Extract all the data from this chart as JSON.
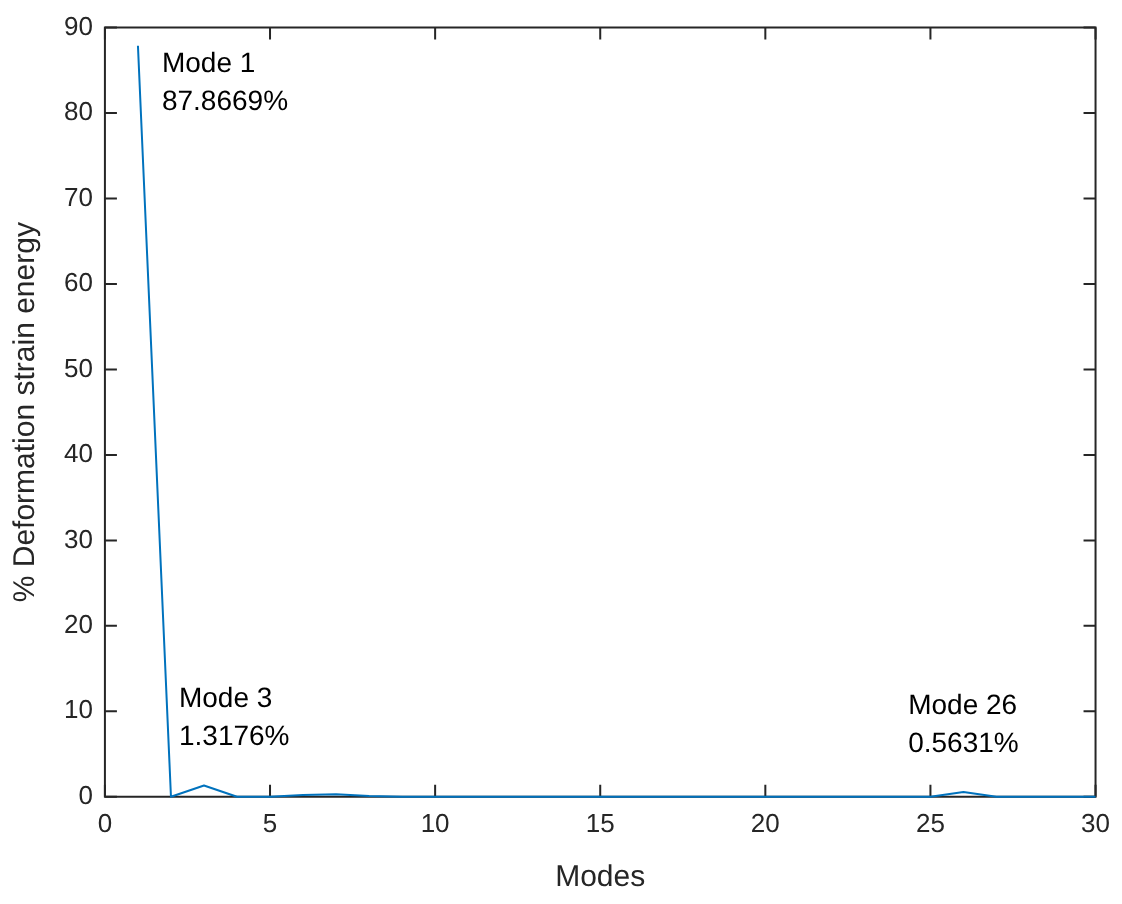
{
  "chart_data": {
    "type": "line",
    "xlabel": "Modes",
    "ylabel": "% Deformation strain energy",
    "x": [
      1,
      2,
      3,
      4,
      5,
      6,
      7,
      8,
      9,
      10,
      11,
      12,
      13,
      14,
      15,
      16,
      17,
      18,
      19,
      20,
      21,
      22,
      23,
      24,
      25,
      26,
      27,
      28,
      29,
      30
    ],
    "series": [
      {
        "color": "#0072bd",
        "values": [
          87.8669,
          0,
          1.3176,
          0,
          0,
          0.2,
          0.3,
          0.1,
          0,
          0,
          0,
          0,
          0,
          0,
          0,
          0,
          0,
          0,
          0,
          0,
          0,
          0,
          0,
          0,
          0,
          0.5631,
          0,
          0,
          0,
          0
        ]
      }
    ],
    "xlim": [
      0,
      30
    ],
    "xticks": [
      0,
      5,
      10,
      15,
      20,
      25,
      30
    ],
    "ylim": [
      0,
      90
    ],
    "yticks": [
      0,
      10,
      20,
      30,
      40,
      50,
      60,
      70,
      80,
      90
    ],
    "grid": false,
    "legend": false,
    "marker": "none",
    "line_style": "solid",
    "annotations": [
      {
        "text": "Mode 1\n87.8669%",
        "x": 1,
        "y": 87.8669
      },
      {
        "text": "Mode 3\n1.3176%",
        "x": 3,
        "y": 1.3176
      },
      {
        "text": "Mode 26\n0.5631%",
        "x": 26,
        "y": 0.5631
      }
    ]
  }
}
